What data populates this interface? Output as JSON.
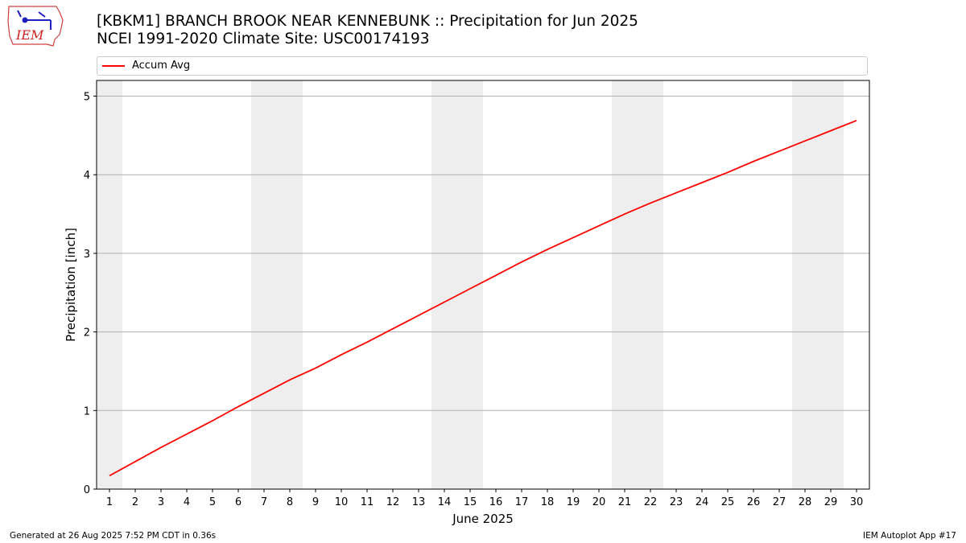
{
  "logo": {
    "text": "IEM"
  },
  "title": {
    "line1": "[KBKM1] BRANCH BROOK NEAR KENNEBUNK :: Precipitation for Jun 2025",
    "line2": "NCEI 1991-2020 Climate Site: USC00174193"
  },
  "legend": {
    "items": [
      {
        "label": "Accum Avg",
        "color": "#ff0000"
      }
    ]
  },
  "footer": {
    "left": "Generated at 26 Aug 2025 7:52 PM CDT in 0.36s",
    "right": "IEM Autoplot App #17"
  },
  "chart_data": {
    "type": "line",
    "xlabel": "June 2025",
    "ylabel": "Precipitation [inch]",
    "x": [
      1,
      2,
      3,
      4,
      5,
      6,
      7,
      8,
      9,
      10,
      11,
      12,
      13,
      14,
      15,
      16,
      17,
      18,
      19,
      20,
      21,
      22,
      23,
      24,
      25,
      26,
      27,
      28,
      29,
      30
    ],
    "xlim": [
      0.5,
      30.5
    ],
    "ylim": [
      0,
      5.2
    ],
    "yticks": [
      0,
      1,
      2,
      3,
      4,
      5
    ],
    "grid": "y",
    "legend_position": "top, above plot",
    "weekend_shading": [
      [
        0.5,
        1.5
      ],
      [
        6.5,
        8.5
      ],
      [
        13.5,
        15.5
      ],
      [
        20.5,
        22.5
      ],
      [
        27.5,
        29.5
      ]
    ],
    "shading_color": "#eeeeee",
    "series": [
      {
        "name": "Accum Avg",
        "color": "#ff0000",
        "values": [
          0.17,
          0.35,
          0.53,
          0.7,
          0.87,
          1.05,
          1.22,
          1.39,
          1.54,
          1.71,
          1.87,
          2.04,
          2.21,
          2.38,
          2.55,
          2.72,
          2.89,
          3.05,
          3.2,
          3.35,
          3.5,
          3.64,
          3.77,
          3.9,
          4.03,
          4.17,
          4.3,
          4.43,
          4.56,
          4.69
        ]
      }
    ]
  }
}
